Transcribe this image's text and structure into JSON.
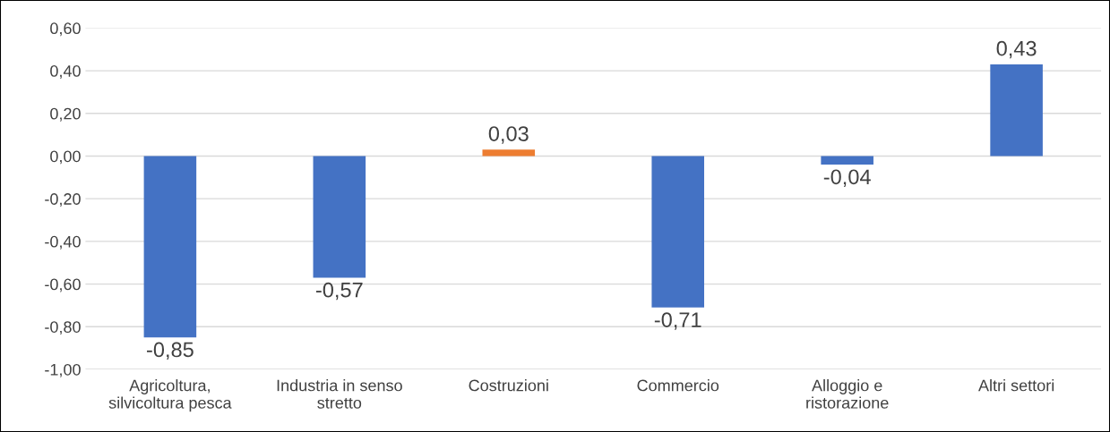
{
  "chart_data": {
    "type": "bar",
    "categories": [
      "Agricoltura,\nsilvicoltura pesca",
      "Industria in senso\nstretto",
      "Costruzioni",
      "Commercio",
      "Alloggio e\nristorazione",
      "Altri settori"
    ],
    "values": [
      -0.85,
      -0.57,
      0.03,
      -0.71,
      -0.04,
      0.43
    ],
    "colors": [
      "#4472c4",
      "#4472c4",
      "#ed7d31",
      "#4472c4",
      "#4472c4",
      "#4472c4"
    ],
    "value_labels": [
      "-0,85",
      "-0,57",
      "0,03",
      "-0,71",
      "-0,04",
      "0,43"
    ],
    "ylim": [
      -1.0,
      0.6
    ],
    "yticks": [
      {
        "value": -1.0,
        "label": "-1,00"
      },
      {
        "value": -0.8,
        "label": "-0,80"
      },
      {
        "value": -0.6,
        "label": "-0,60"
      },
      {
        "value": -0.4,
        "label": "-0,40"
      },
      {
        "value": -0.2,
        "label": "-0,20"
      },
      {
        "value": 0.0,
        "label": "0,00"
      },
      {
        "value": 0.2,
        "label": "0,20"
      },
      {
        "value": 0.4,
        "label": "0,40"
      },
      {
        "value": 0.6,
        "label": "0,60"
      }
    ],
    "grid": "y",
    "legend": false
  }
}
